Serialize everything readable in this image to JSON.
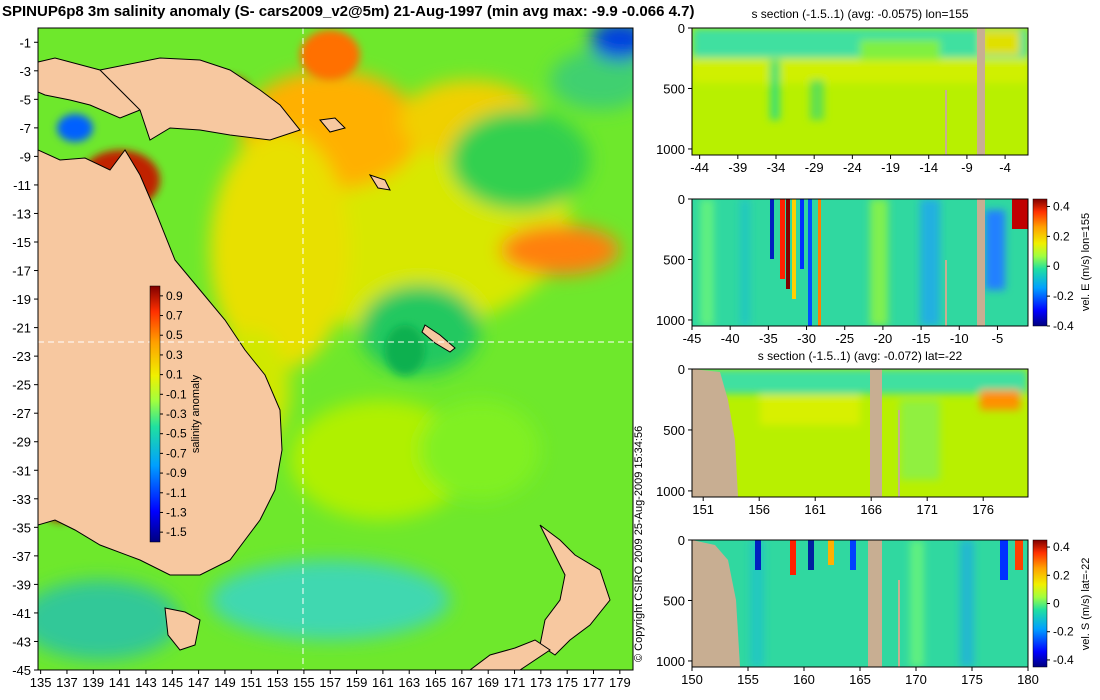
{
  "figure": {
    "title": "SPINUP6p8 3m salinity anomaly (S- cars2009_v2@5m) 21-Aug-1997 (min avg max: -9.9 -0.066 4.7)",
    "copyright": "© Copyright CSIRO 2009   25-Aug-2009 15:34:56",
    "colors": {
      "land": "#f7c8a0",
      "section_land": "#c8ae92",
      "crosshair": "#ffffff"
    }
  },
  "chart_data": [
    {
      "type": "heatmap",
      "panel": "map",
      "title": "SPINUP6p8 3m salinity anomaly (S- cars2009_v2@5m) 21-Aug-1997 (min avg max: -9.9 -0.066 4.7)",
      "x_ticks": [
        "135",
        "137",
        "139",
        "141",
        "143",
        "145",
        "147",
        "149",
        "151",
        "153",
        "155",
        "157",
        "159",
        "161",
        "163",
        "165",
        "167",
        "169",
        "171",
        "173",
        "175",
        "177",
        "179"
      ],
      "y_ticks": [
        "-1",
        "-3",
        "-5",
        "-7",
        "-9",
        "-11",
        "-13",
        "-15",
        "-17",
        "-19",
        "-21",
        "-23",
        "-25",
        "-27",
        "-29",
        "-31",
        "-33",
        "-35",
        "-37",
        "-39",
        "-41",
        "-43",
        "-45"
      ],
      "xlim": [
        134.8,
        180
      ],
      "ylim": [
        -45,
        0
      ],
      "crosshair": {
        "lon": 155,
        "lat": -22
      },
      "colorbar": {
        "label": "salinity anomaly",
        "ticks": [
          "0.9",
          "0.7",
          "0.5",
          "0.3",
          "0.1",
          "-0.1",
          "-0.3",
          "-0.5",
          "-0.7",
          "-0.9",
          "-1.1",
          "-1.3",
          "-1.5"
        ],
        "range": [
          -1.6,
          1.0
        ]
      }
    },
    {
      "type": "heatmap",
      "panel": "section1",
      "title": "s section (-1.5..1) (avg: -0.0575) lon=155",
      "x_ticks": [
        "-44",
        "-39",
        "-34",
        "-29",
        "-24",
        "-19",
        "-14",
        "-9",
        "-4"
      ],
      "y_ticks": [
        "0",
        "500",
        "1000"
      ],
      "xlim": [
        -45,
        -1
      ],
      "ylim": [
        0,
        1050
      ]
    },
    {
      "type": "heatmap",
      "panel": "section2",
      "title": "",
      "x_ticks": [
        "-45",
        "-40",
        "-35",
        "-30",
        "-25",
        "-20",
        "-15",
        "-10",
        "-5"
      ],
      "y_ticks": [
        "0",
        "500",
        "1000"
      ],
      "xlim": [
        -45,
        -1
      ],
      "ylim": [
        0,
        1050
      ],
      "colorbar": {
        "label": "vel. E (m/s) lon=155",
        "ticks": [
          "0.4",
          "0.2",
          "0",
          "-0.2",
          "-0.4"
        ],
        "range": [
          -0.4,
          0.45
        ]
      }
    },
    {
      "type": "heatmap",
      "panel": "section3",
      "title": "s section (-1.5..1) (avg: -0.072) lat=-22",
      "x_ticks": [
        "151",
        "156",
        "161",
        "166",
        "171",
        "176"
      ],
      "y_ticks": [
        "0",
        "500",
        "1000"
      ],
      "xlim": [
        150,
        180
      ],
      "ylim": [
        0,
        1050
      ]
    },
    {
      "type": "heatmap",
      "panel": "section4",
      "title": "",
      "x_ticks": [
        "150",
        "155",
        "160",
        "165",
        "170",
        "175",
        "180"
      ],
      "y_ticks": [
        "0",
        "500",
        "1000"
      ],
      "xlim": [
        150,
        180
      ],
      "ylim": [
        0,
        1050
      ],
      "colorbar": {
        "label": "vel. S (m/s) lat=-22",
        "ticks": [
          "0.4",
          "0.2",
          "0",
          "-0.2",
          "-0.4"
        ],
        "range": [
          -0.45,
          0.45
        ]
      }
    }
  ]
}
